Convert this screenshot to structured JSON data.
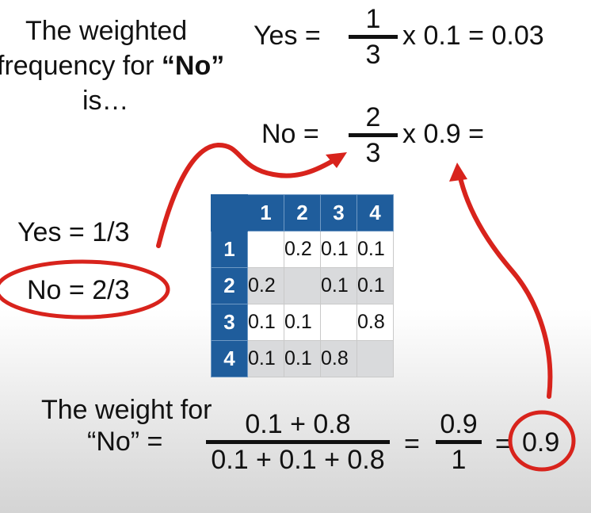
{
  "intro": {
    "line1": "The weighted",
    "line2_prefix": "frequency for ",
    "line2_bold": "“No”",
    "line3": "is…"
  },
  "yes_eq": {
    "label": "Yes =",
    "num": "1",
    "den": "3",
    "rest": "x 0.1 = 0.03"
  },
  "no_eq": {
    "label": "No =",
    "num": "2",
    "den": "3",
    "rest": "x 0.9 ="
  },
  "priors": {
    "yes": "Yes = 1/3",
    "no": "No = 2/3"
  },
  "table": {
    "headers": [
      "1",
      "2",
      "3",
      "4"
    ],
    "rows": [
      {
        "label": "1",
        "cells": [
          "",
          "0.2",
          "0.1",
          "0.1"
        ]
      },
      {
        "label": "2",
        "cells": [
          "0.2",
          "",
          "0.1",
          "0.1"
        ]
      },
      {
        "label": "3",
        "cells": [
          "0.1",
          "0.1",
          "",
          "0.8"
        ]
      },
      {
        "label": "4",
        "cells": [
          "0.1",
          "0.1",
          "0.8",
          ""
        ]
      }
    ]
  },
  "weight": {
    "line1": "The weight for",
    "line2": "“No” =",
    "num": "0.1 + 0.8",
    "den": "0.1 + 0.1 + 0.8",
    "eq1": "=",
    "num2": "0.9",
    "den2": "1",
    "eq2": "=",
    "result": "0.9"
  },
  "colors": {
    "accent_red": "#d8231c",
    "header_blue": "#1f5d9c",
    "row_gray": "#d9dadc"
  }
}
